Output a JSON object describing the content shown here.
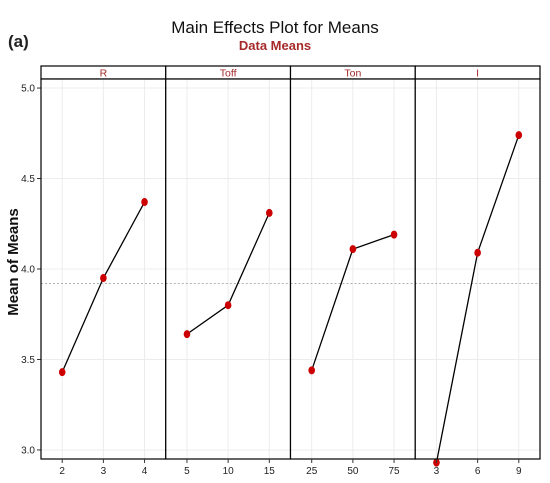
{
  "panel_tag": "(a)",
  "chart_data": {
    "type": "line",
    "title": "Main Effects Plot for Means",
    "subtitle": "Data Means",
    "ylabel": "Mean of Means",
    "ylim": [
      2.95,
      5.05
    ],
    "yticks": [
      3.0,
      3.5,
      4.0,
      4.5,
      5.0
    ],
    "ytick_labels": [
      "3.0",
      "3.5",
      "4.0",
      "4.5",
      "5.0"
    ],
    "grand_mean": 3.92,
    "grid": true,
    "panels": [
      {
        "name": "R",
        "x": [
          "2",
          "3",
          "4"
        ],
        "values": [
          3.43,
          3.95,
          4.37
        ]
      },
      {
        "name": "Toff",
        "x": [
          "5",
          "10",
          "15"
        ],
        "values": [
          3.64,
          3.8,
          4.31
        ]
      },
      {
        "name": "Ton",
        "x": [
          "25",
          "50",
          "75"
        ],
        "values": [
          3.44,
          4.11,
          4.19
        ]
      },
      {
        "name": "I",
        "x": [
          "3",
          "6",
          "9"
        ],
        "values": [
          2.93,
          4.09,
          4.74
        ]
      }
    ],
    "colors": {
      "marker": "#cc0000",
      "line": "#000000",
      "strip_text": "#a52a2a",
      "subtitle": "#a52a2a",
      "reference": "#b0b0b0",
      "grid": "#ececec"
    }
  }
}
